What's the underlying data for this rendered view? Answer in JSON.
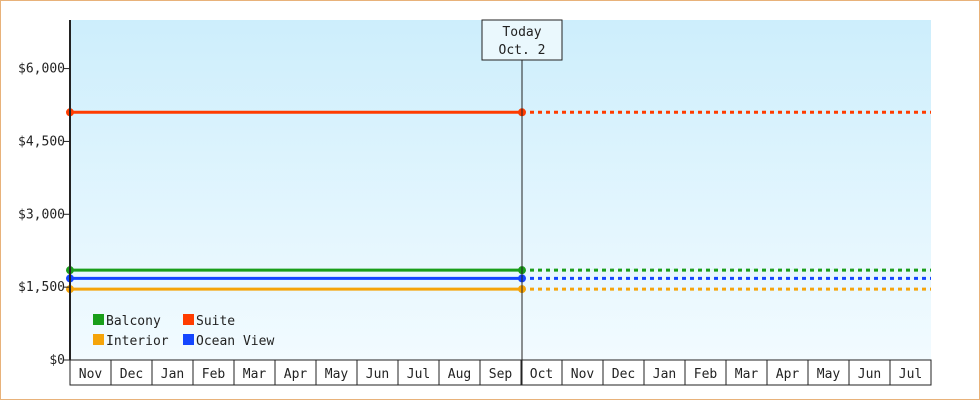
{
  "chart_data": {
    "type": "line",
    "ylim": [
      0,
      7000
    ],
    "yticks": [
      {
        "value": 0,
        "label": "$0"
      },
      {
        "value": 1500,
        "label": "$1,500"
      },
      {
        "value": 3000,
        "label": "$3,000"
      },
      {
        "value": 4500,
        "label": "$4,500"
      },
      {
        "value": 6000,
        "label": "$6,000"
      }
    ],
    "months": [
      "Nov",
      "Dec",
      "Jan",
      "Feb",
      "Mar",
      "Apr",
      "May",
      "Jun",
      "Jul",
      "Aug",
      "Sep",
      "Oct",
      "Nov",
      "Dec",
      "Jan",
      "Feb",
      "Mar",
      "Apr",
      "May",
      "Jun",
      "Jul"
    ],
    "today": {
      "line1": "Today",
      "line2": "Oct. 2"
    },
    "series": [
      {
        "name": "Suite",
        "color": "#ff3c00",
        "value": 5100
      },
      {
        "name": "Balcony",
        "color": "#1a9e1a",
        "value": 1850
      },
      {
        "name": "Ocean View",
        "color": "#1446ff",
        "value": 1680
      },
      {
        "name": "Interior",
        "color": "#f5a40a",
        "value": 1460
      }
    ],
    "legend": [
      {
        "name": "Balcony",
        "color": "#1a9e1a"
      },
      {
        "name": "Suite",
        "color": "#ff3c00"
      },
      {
        "name": "Interior",
        "color": "#f5a40a"
      },
      {
        "name": "Ocean View",
        "color": "#1446ff"
      }
    ],
    "colors": {
      "plot_top": "#cdeefc",
      "plot_bottom": "#f2fbff",
      "axis": "#222222"
    }
  }
}
